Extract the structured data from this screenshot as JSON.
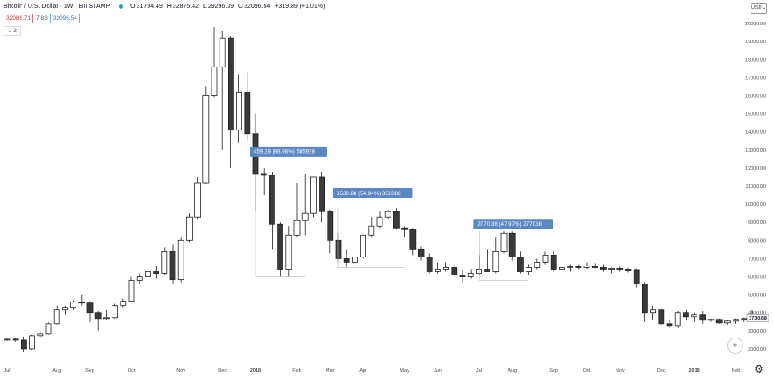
{
  "header": {
    "symbol": "Bitcoin / U.S. Dollar · 1W · BITSTAMP",
    "o_label": "O",
    "o_value": "31794.49",
    "h_label": "H",
    "h_value": "32875.42",
    "l_label": "L",
    "l_value": "29296.39",
    "c_label": "C",
    "c_value": "32096.54",
    "change": "+319.89 (+1.01%)",
    "bid": "32088.71",
    "spread": "7.83",
    "ask": "32096.54",
    "indicator_toggle": "⌄ 3",
    "currency_button": "USD⌄"
  },
  "colors": {
    "up_fill": "#ffffff",
    "down_fill": "#3a3a3a",
    "stroke": "#222222",
    "label_bg": "#5b87c5"
  },
  "chart_data": {
    "type": "candlestick",
    "y_axis": {
      "ylim": [
        1400,
        21000
      ],
      "ticks": [
        "2000.00",
        "3000.00",
        "4000.00",
        "5000.00",
        "6000.00",
        "7000.00",
        "8000.00",
        "9000.00",
        "10000.00",
        "11000.00",
        "12000.00",
        "13000.00",
        "14000.00",
        "15000.00",
        "16000.00",
        "17000.00",
        "18000.00",
        "19000.00",
        "20000.00"
      ],
      "tick_values": [
        2000,
        3000,
        4000,
        5000,
        6000,
        7000,
        8000,
        9000,
        10000,
        11000,
        12000,
        13000,
        14000,
        15000,
        16000,
        17000,
        18000,
        19000,
        20000
      ],
      "price_tag": "3730.68"
    },
    "x_axis": {
      "labels": [
        {
          "text": "Jul",
          "week": 0
        },
        {
          "text": "Aug",
          "week": 6
        },
        {
          "text": "Sep",
          "week": 10
        },
        {
          "text": "Oct",
          "week": 15
        },
        {
          "text": "Nov",
          "week": 21
        },
        {
          "text": "Dec",
          "week": 26
        },
        {
          "text": "2018",
          "week": 30
        },
        {
          "text": "Feb",
          "week": 35
        },
        {
          "text": "Mar",
          "week": 39
        },
        {
          "text": "Apr",
          "week": 43
        },
        {
          "text": "May",
          "week": 48
        },
        {
          "text": "Jun",
          "week": 52
        },
        {
          "text": "Jul",
          "week": 57
        },
        {
          "text": "Aug",
          "week": 61
        },
        {
          "text": "Sep",
          "week": 66
        },
        {
          "text": "Oct",
          "week": 70
        },
        {
          "text": "Nov",
          "week": 74
        },
        {
          "text": "Dec",
          "week": 79
        },
        {
          "text": "2019",
          "week": 83
        },
        {
          "text": "Feb",
          "week": 88
        }
      ]
    },
    "candles": [
      [
        2500,
        2600,
        2450,
        2550
      ],
      [
        2550,
        2600,
        2400,
        2500
      ],
      [
        2500,
        2700,
        1850,
        2000
      ],
      [
        2000,
        2800,
        1950,
        2750
      ],
      [
        2750,
        3000,
        2650,
        2850
      ],
      [
        2850,
        3500,
        2800,
        3400
      ],
      [
        3400,
        4400,
        3350,
        4200
      ],
      [
        4200,
        4400,
        3900,
        4300
      ],
      [
        4300,
        4700,
        4200,
        4600
      ],
      [
        4600,
        5000,
        4400,
        4550
      ],
      [
        4550,
        4650,
        3500,
        4000
      ],
      [
        4000,
        4100,
        3000,
        3700
      ],
      [
        3700,
        4200,
        3600,
        3750
      ],
      [
        3750,
        4500,
        3700,
        4400
      ],
      [
        4400,
        4800,
        4300,
        4650
      ],
      [
        4650,
        6000,
        4600,
        5800
      ],
      [
        5800,
        6200,
        5600,
        6000
      ],
      [
        6000,
        6500,
        5800,
        6300
      ],
      [
        6300,
        6600,
        5900,
        6200
      ],
      [
        6200,
        7600,
        6100,
        7400
      ],
      [
        7400,
        7800,
        5600,
        5850
      ],
      [
        5850,
        8200,
        5700,
        8000
      ],
      [
        8000,
        9500,
        7900,
        9300
      ],
      [
        9300,
        11500,
        9200,
        11200
      ],
      [
        11200,
        16500,
        11100,
        16000
      ],
      [
        16000,
        19800,
        15900,
        17600
      ],
      [
        17600,
        19600,
        13000,
        19200
      ],
      [
        19200,
        19300,
        12000,
        14100
      ],
      [
        14100,
        17200,
        13400,
        16200
      ],
      [
        16200,
        17300,
        13500,
        13900
      ],
      [
        13900,
        15000,
        9600,
        11700
      ],
      [
        11700,
        12000,
        10500,
        11600
      ],
      [
        11600,
        11800,
        7500,
        8900
      ],
      [
        8900,
        9000,
        6000,
        6400
      ],
      [
        6400,
        8800,
        6000,
        8300
      ],
      [
        8300,
        11200,
        8200,
        9100
      ],
      [
        9100,
        11700,
        8300,
        9500
      ],
      [
        9500,
        11400,
        9300,
        11500
      ],
      [
        11500,
        11800,
        9000,
        9600
      ],
      [
        9600,
        9700,
        7300,
        8000
      ],
      [
        8000,
        8400,
        6800,
        7000
      ],
      [
        7000,
        7500,
        6500,
        6800
      ],
      [
        6800,
        7300,
        6600,
        7100
      ],
      [
        7100,
        8300,
        7000,
        8300
      ],
      [
        8300,
        9300,
        8200,
        8800
      ],
      [
        8800,
        9600,
        8700,
        9300
      ],
      [
        9300,
        9700,
        9200,
        9600
      ],
      [
        9600,
        9800,
        8600,
        8700
      ],
      [
        8700,
        8800,
        8200,
        8600
      ],
      [
        8600,
        8700,
        7200,
        7500
      ],
      [
        7500,
        7700,
        6900,
        7100
      ],
      [
        7100,
        7300,
        6200,
        6300
      ],
      [
        6300,
        6800,
        6200,
        6400
      ],
      [
        6400,
        6800,
        6300,
        6500
      ],
      [
        6500,
        6700,
        6000,
        6100
      ],
      [
        6100,
        6400,
        5700,
        6000
      ],
      [
        6000,
        6400,
        5900,
        6200
      ],
      [
        6200,
        7200,
        6100,
        6400
      ],
      [
        6400,
        7500,
        6300,
        6300
      ],
      [
        6300,
        8200,
        6200,
        7400
      ],
      [
        7400,
        8500,
        7300,
        8400
      ],
      [
        8400,
        8500,
        6900,
        7100
      ],
      [
        7100,
        7400,
        6200,
        6300
      ],
      [
        6300,
        6700,
        6100,
        6500
      ],
      [
        6500,
        7000,
        6400,
        6800
      ],
      [
        6800,
        7400,
        6700,
        7200
      ],
      [
        7200,
        7400,
        6300,
        6400
      ],
      [
        6400,
        6600,
        6200,
        6500
      ],
      [
        6500,
        6700,
        6300,
        6550
      ],
      [
        6550,
        6700,
        6400,
        6500
      ],
      [
        6500,
        6800,
        6400,
        6600
      ],
      [
        6600,
        6750,
        6450,
        6500
      ],
      [
        6500,
        6700,
        6300,
        6400
      ],
      [
        6400,
        6500,
        6200,
        6450
      ],
      [
        6450,
        6550,
        6300,
        6400
      ],
      [
        6400,
        6500,
        6250,
        6380
      ],
      [
        6380,
        6450,
        5400,
        5600
      ],
      [
        5600,
        5700,
        3500,
        4000
      ],
      [
        4000,
        4400,
        3600,
        4200
      ],
      [
        4200,
        4300,
        3300,
        3400
      ],
      [
        3400,
        3600,
        3200,
        3300
      ],
      [
        3300,
        4100,
        3200,
        4000
      ],
      [
        4000,
        4200,
        3600,
        3800
      ],
      [
        3800,
        4000,
        3500,
        3900
      ],
      [
        3900,
        4100,
        3400,
        3600
      ],
      [
        3600,
        3700,
        3500,
        3650
      ],
      [
        3650,
        3700,
        3400,
        3450
      ],
      [
        3450,
        3600,
        3350,
        3550
      ],
      [
        3550,
        3700,
        3400,
        3650
      ],
      [
        3650,
        3750,
        3500,
        3700
      ],
      [
        3700,
        4200,
        3600,
        3730
      ]
    ],
    "annotations": [
      {
        "text": "459.28 (98.96%) 585928",
        "x_week": 30,
        "y_value": 12900,
        "measure": {
          "from_week": 30,
          "to_week": 36,
          "low": 6000,
          "high": 11700
        }
      },
      {
        "text": "3530.88 (54.94%) 353088",
        "x_week": 40,
        "y_value": 10600,
        "measure": {
          "from_week": 40,
          "to_week": 48,
          "low": 6500,
          "high": 9800
        }
      },
      {
        "text": "2770.38 (47.97%) 277038",
        "x_week": 57,
        "y_value": 8900,
        "measure": {
          "from_week": 57,
          "to_week": 63,
          "low": 5800,
          "high": 8500
        }
      }
    ]
  }
}
